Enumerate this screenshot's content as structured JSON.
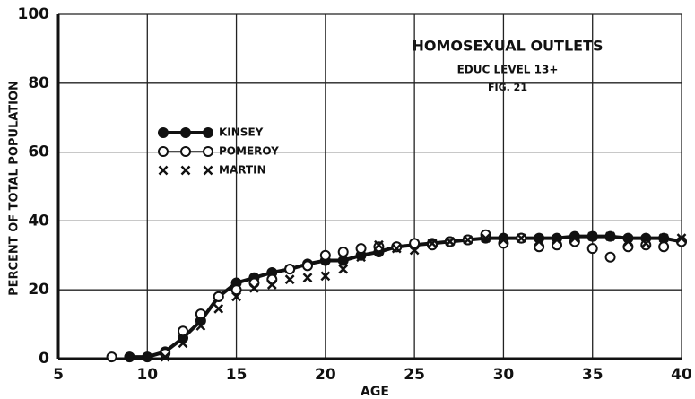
{
  "chart_data": {
    "type": "scatter",
    "title": "HOMOSEXUAL OUTLETS",
    "subtitle": "EDUC LEVEL 13+",
    "annotation": "FIG. 21",
    "x_label": "AGE",
    "y_label": "PERCENT OF TOTAL POPULATION",
    "xlim": [
      5,
      40
    ],
    "xticks": [
      5,
      10,
      15,
      20,
      25,
      30,
      35,
      40
    ],
    "ylim": [
      0,
      100
    ],
    "yticks": [
      0,
      20,
      40,
      60,
      80,
      100
    ],
    "grid": true,
    "series": [
      {
        "name": "KINSEY",
        "color": "#111111",
        "marker": "filled-circle",
        "line": true,
        "x": [
          9,
          10,
          11,
          12,
          13,
          14,
          15,
          16,
          17,
          18,
          19,
          20,
          21,
          22,
          23,
          24,
          25,
          26,
          27,
          28,
          29,
          30,
          31,
          32,
          33,
          34,
          35,
          36,
          37,
          38,
          39,
          40
        ],
        "values": [
          0.5,
          0.5,
          2,
          6,
          11,
          18,
          22,
          23.5,
          25,
          26,
          27.5,
          28.5,
          28.5,
          30,
          31,
          32.5,
          33,
          33.5,
          34,
          34.5,
          35,
          35,
          35,
          35,
          35,
          35.5,
          35.5,
          35.5,
          35,
          35,
          35,
          34
        ]
      },
      {
        "name": "POMEROY",
        "color": "#111111",
        "marker": "open-circle",
        "line": false,
        "x": [
          8,
          11,
          12,
          13,
          14,
          15,
          16,
          17,
          18,
          19,
          20,
          21,
          22,
          23,
          24,
          25,
          26,
          27,
          28,
          29,
          30,
          31,
          32,
          33,
          34,
          35,
          36,
          37,
          38,
          39,
          40
        ],
        "values": [
          0.5,
          1.5,
          8,
          13,
          18,
          20,
          22,
          23,
          26,
          27,
          30,
          31,
          32,
          32.5,
          32.5,
          33.5,
          33,
          34,
          34.5,
          36,
          33.5,
          35,
          32.5,
          33,
          34,
          32,
          29.5,
          32.5,
          33,
          32.5,
          34
        ]
      },
      {
        "name": "MARTIN",
        "color": "#111111",
        "marker": "cross",
        "line": false,
        "x": [
          11,
          12,
          13,
          14,
          15,
          16,
          17,
          18,
          19,
          20,
          21,
          22,
          23,
          24,
          25,
          26,
          27,
          28,
          29,
          30,
          31,
          32,
          33,
          34,
          35,
          36,
          37,
          38,
          39,
          40
        ],
        "values": [
          0.5,
          4.5,
          9.5,
          14.5,
          18,
          20.5,
          21.5,
          23,
          23.5,
          24,
          26,
          29.5,
          33,
          32,
          31.5,
          33.5,
          34,
          34.5,
          35,
          34.5,
          35,
          34,
          34.5,
          35,
          35.5,
          35.5,
          34,
          33.5,
          35,
          35
        ]
      }
    ]
  }
}
